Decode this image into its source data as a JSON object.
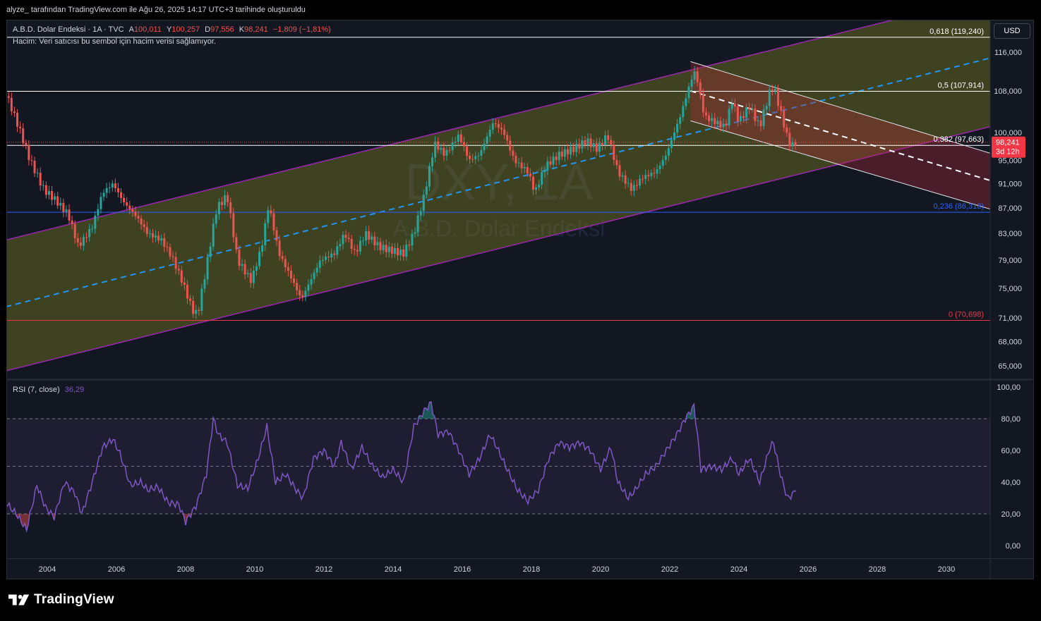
{
  "header": {
    "attribution": "alyze_ tarafından TradingView.com ile Ağu 26, 2025 14:17 UTC+3 tarihinde oluşturuldu",
    "symbol": "A.B.D. Dolar Endeksi · 1A · TVC",
    "open_label": "A",
    "open": "100,011",
    "high_label": "Y",
    "high": "100,257",
    "low_label": "D",
    "low": "97,556",
    "close_label": "K",
    "close": "98,241",
    "change": "−1,809 (−1,81%)",
    "volume_note": "Hacim: Veri satıcısı bu sembol için hacim verisi sağlamıyor.",
    "currency": "USD"
  },
  "watermark": {
    "ticker": "DXY, 1A",
    "name": "A.B.D. Dolar Endeksi"
  },
  "price_tag": {
    "value": "98,241",
    "countdown": "3d 12h"
  },
  "colors": {
    "up": "#26a69a",
    "down": "#ef5350",
    "channel": "#9c27b0",
    "rsi": "#7e57c2",
    "trend": "#2196f3"
  },
  "footer": {
    "brand": "TradingView",
    "logo_icon": "tradingview-logo-icon"
  },
  "chart_data": [
    {
      "type": "candlestick",
      "title": "A.B.D. Dolar Endeksi · 1A · TVC",
      "interval": "1A",
      "y_scale": "log",
      "ylim": [
        63.5,
        123
      ],
      "xlim": [
        "2002-10",
        "2031-06"
      ],
      "y_ticks": [
        "116,000",
        "108,000",
        "100,000",
        "95,000",
        "91,000",
        "87,000",
        "83,000",
        "79,000",
        "75,000",
        "71,000",
        "68,000",
        "65,000"
      ],
      "x_ticks": [
        "2004",
        "2006",
        "2008",
        "2010",
        "2012",
        "2014",
        "2016",
        "2018",
        "2020",
        "2022",
        "2024",
        "2026",
        "2028",
        "2030"
      ],
      "last_price": 98.241,
      "fib_levels": [
        {
          "label": "0,618 (119,240)",
          "value": 119.24,
          "color": "#ffffff"
        },
        {
          "label": "0,5 (107,914)",
          "value": 107.914,
          "color": "#ffffff"
        },
        {
          "label": "0,382 (97,663)",
          "value": 97.663,
          "color": "#ffffff"
        },
        {
          "label": "0,236 (86,318)",
          "value": 86.318,
          "color": "#2962ff"
        },
        {
          "label": "0 (70,698)",
          "value": 70.698,
          "color": "#f23645"
        }
      ],
      "closes_path": [
        [
          2002.8,
          107.5
        ],
        [
          2003.2,
          100.5
        ],
        [
          2003.5,
          95
        ],
        [
          2003.9,
          90
        ],
        [
          2004.2,
          88.5
        ],
        [
          2004.6,
          86
        ],
        [
          2004.9,
          81
        ],
        [
          2005.3,
          84
        ],
        [
          2005.6,
          89.5
        ],
        [
          2005.9,
          91
        ],
        [
          2006.2,
          88
        ],
        [
          2006.6,
          85.5
        ],
        [
          2006.9,
          83
        ],
        [
          2007.3,
          82
        ],
        [
          2007.6,
          79.5
        ],
        [
          2007.9,
          76
        ],
        [
          2008.2,
          72
        ],
        [
          2008.35,
          71.5
        ],
        [
          2008.6,
          78
        ],
        [
          2008.9,
          87
        ],
        [
          2009.2,
          89
        ],
        [
          2009.5,
          79
        ],
        [
          2009.9,
          76
        ],
        [
          2010.2,
          81
        ],
        [
          2010.4,
          87.5
        ],
        [
          2010.7,
          80
        ],
        [
          2011.1,
          76
        ],
        [
          2011.35,
          73.5
        ],
        [
          2011.7,
          77
        ],
        [
          2011.9,
          79
        ],
        [
          2012.3,
          80
        ],
        [
          2012.6,
          83
        ],
        [
          2012.9,
          80
        ],
        [
          2013.2,
          83
        ],
        [
          2013.6,
          81
        ],
        [
          2013.9,
          80.5
        ],
        [
          2014.3,
          80
        ],
        [
          2014.6,
          83
        ],
        [
          2014.9,
          89
        ],
        [
          2015.2,
          98
        ],
        [
          2015.5,
          96
        ],
        [
          2015.9,
          99.5
        ],
        [
          2016.2,
          95
        ],
        [
          2016.5,
          96
        ],
        [
          2016.9,
          102
        ],
        [
          2017.2,
          100
        ],
        [
          2017.5,
          95
        ],
        [
          2017.9,
          93
        ],
        [
          2018.1,
          89.5
        ],
        [
          2018.4,
          94
        ],
        [
          2018.8,
          96
        ],
        [
          2019.2,
          97
        ],
        [
          2019.6,
          98.5
        ],
        [
          2019.9,
          97
        ],
        [
          2020.2,
          99.5
        ],
        [
          2020.5,
          93
        ],
        [
          2020.9,
          90
        ],
        [
          2021.2,
          92
        ],
        [
          2021.6,
          93
        ],
        [
          2021.9,
          96
        ],
        [
          2022.3,
          103
        ],
        [
          2022.7,
          112
        ],
        [
          2022.8,
          110
        ],
        [
          2023.0,
          103
        ],
        [
          2023.3,
          102
        ],
        [
          2023.6,
          101
        ],
        [
          2023.8,
          106
        ],
        [
          2024.0,
          102
        ],
        [
          2024.3,
          105
        ],
        [
          2024.6,
          101
        ],
        [
          2024.9,
          108
        ],
        [
          2025.0,
          109
        ],
        [
          2025.2,
          104
        ],
        [
          2025.4,
          99
        ],
        [
          2025.5,
          97.5
        ],
        [
          2025.65,
          98.2
        ]
      ],
      "trend_channel": {
        "lower": [
          [
            2002.8,
            64.4
          ],
          [
            2031.4,
            101.3
          ]
        ],
        "upper": [
          [
            2002.8,
            82
          ],
          [
            2031.4,
            129
          ]
        ],
        "mid": [
          [
            2002.8,
            72.5
          ],
          [
            2031.4,
            115
          ]
        ]
      },
      "down_channel": {
        "upper": [
          [
            2022.6,
            114
          ],
          [
            2031.4,
            96
          ]
        ],
        "lower": [
          [
            2022.6,
            102.2
          ],
          [
            2031.4,
            86.6
          ]
        ],
        "mid": [
          [
            2022.6,
            108
          ],
          [
            2031.4,
            91.3
          ]
        ]
      }
    },
    {
      "type": "line",
      "title": "RSI (7, close)",
      "value_label": "36,29",
      "ylim": [
        -8,
        104
      ],
      "y_ticks": [
        "100,00",
        "80,00",
        "60,00",
        "40,00",
        "20,00",
        "0,00"
      ],
      "levels": [
        80,
        50,
        20
      ],
      "series": [
        {
          "values_path": [
            [
              2002.8,
              27
            ],
            [
              2003.1,
              20
            ],
            [
              2003.4,
              10
            ],
            [
              2003.7,
              38
            ],
            [
              2003.95,
              24
            ],
            [
              2004.2,
              18
            ],
            [
              2004.5,
              40
            ],
            [
              2004.8,
              33
            ],
            [
              2005.0,
              20
            ],
            [
              2005.3,
              40
            ],
            [
              2005.6,
              62
            ],
            [
              2005.9,
              67
            ],
            [
              2006.1,
              58
            ],
            [
              2006.4,
              38
            ],
            [
              2006.7,
              40
            ],
            [
              2006.9,
              35
            ],
            [
              2007.2,
              37
            ],
            [
              2007.5,
              27
            ],
            [
              2007.8,
              26
            ],
            [
              2008.0,
              15
            ],
            [
              2008.3,
              25
            ],
            [
              2008.6,
              45
            ],
            [
              2008.8,
              80
            ],
            [
              2008.95,
              70
            ],
            [
              2009.2,
              65
            ],
            [
              2009.5,
              38
            ],
            [
              2009.8,
              36
            ],
            [
              2010.1,
              55
            ],
            [
              2010.35,
              75
            ],
            [
              2010.6,
              40
            ],
            [
              2010.9,
              45
            ],
            [
              2011.2,
              35
            ],
            [
              2011.4,
              30
            ],
            [
              2011.7,
              55
            ],
            [
              2012.0,
              60
            ],
            [
              2012.3,
              50
            ],
            [
              2012.5,
              65
            ],
            [
              2012.8,
              48
            ],
            [
              2013.1,
              62
            ],
            [
              2013.4,
              50
            ],
            [
              2013.7,
              43
            ],
            [
              2014.0,
              48
            ],
            [
              2014.3,
              40
            ],
            [
              2014.6,
              75
            ],
            [
              2014.9,
              85
            ],
            [
              2015.1,
              90
            ],
            [
              2015.3,
              70
            ],
            [
              2015.6,
              72
            ],
            [
              2015.9,
              60
            ],
            [
              2016.2,
              45
            ],
            [
              2016.5,
              55
            ],
            [
              2016.8,
              70
            ],
            [
              2017.0,
              62
            ],
            [
              2017.3,
              48
            ],
            [
              2017.6,
              35
            ],
            [
              2017.9,
              28
            ],
            [
              2018.2,
              35
            ],
            [
              2018.5,
              55
            ],
            [
              2018.8,
              65
            ],
            [
              2019.1,
              62
            ],
            [
              2019.4,
              65
            ],
            [
              2019.7,
              60
            ],
            [
              2020.0,
              48
            ],
            [
              2020.3,
              62
            ],
            [
              2020.5,
              40
            ],
            [
              2020.8,
              30
            ],
            [
              2021.0,
              35
            ],
            [
              2021.3,
              45
            ],
            [
              2021.6,
              50
            ],
            [
              2021.9,
              60
            ],
            [
              2022.2,
              70
            ],
            [
              2022.45,
              80
            ],
            [
              2022.7,
              88
            ],
            [
              2022.8,
              70
            ],
            [
              2022.9,
              48
            ],
            [
              2023.2,
              50
            ],
            [
              2023.5,
              48
            ],
            [
              2023.8,
              55
            ],
            [
              2024.0,
              45
            ],
            [
              2024.3,
              55
            ],
            [
              2024.6,
              40
            ],
            [
              2024.9,
              62
            ],
            [
              2025.0,
              65
            ],
            [
              2025.2,
              45
            ],
            [
              2025.4,
              30
            ],
            [
              2025.55,
              32
            ],
            [
              2025.65,
              36.3
            ]
          ]
        }
      ]
    }
  ]
}
